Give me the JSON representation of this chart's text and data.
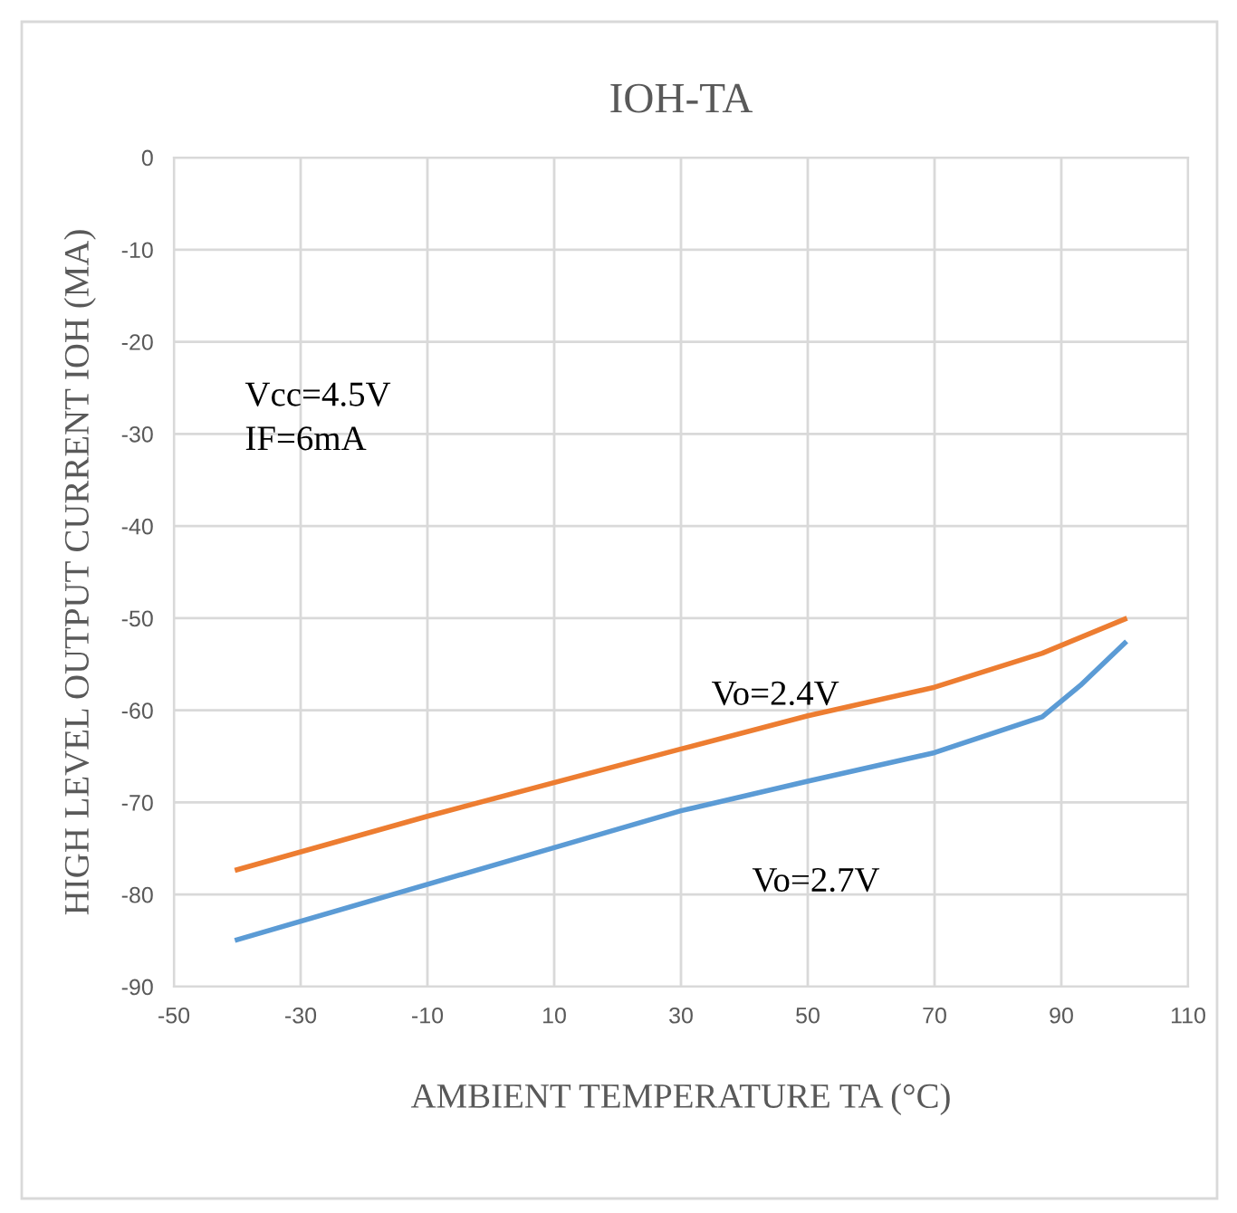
{
  "chart_data": {
    "type": "line",
    "title": "IOH-TA",
    "xlabel": "AMBIENT TEMPERATURE TA (°C)",
    "ylabel": "HIGH LEVEL OUTPUT CURRENT IOH (MA)",
    "annotations": [
      "Vcc=4.5V\nIF=6mA"
    ],
    "series": [
      {
        "name": "Vo=2.4V",
        "color": "#ed7d31",
        "x": [
          -40,
          -10,
          30,
          50,
          70,
          87,
          100
        ],
        "values": [
          -77.3,
          -71.5,
          -64.2,
          -60.6,
          -57.5,
          -53.8,
          -50.1
        ]
      },
      {
        "name": "Vo=2.7V",
        "color": "#5b9bd5",
        "x": [
          -40,
          10,
          30,
          50,
          70,
          87,
          93,
          100
        ],
        "values": [
          -84.9,
          -74.9,
          -70.9,
          -67.7,
          -64.6,
          -60.7,
          -57.3,
          -52.7
        ]
      }
    ],
    "xlim": [
      -50,
      110
    ],
    "xticks": [
      -50,
      -30,
      -10,
      10,
      30,
      50,
      70,
      90,
      110
    ],
    "ylim": [
      -90,
      0
    ],
    "yticks": [
      -90,
      -80,
      -70,
      -60,
      -50,
      -40,
      -30,
      -20,
      -10,
      0
    ],
    "grid": true,
    "marker": "none",
    "line_style": "solid"
  }
}
